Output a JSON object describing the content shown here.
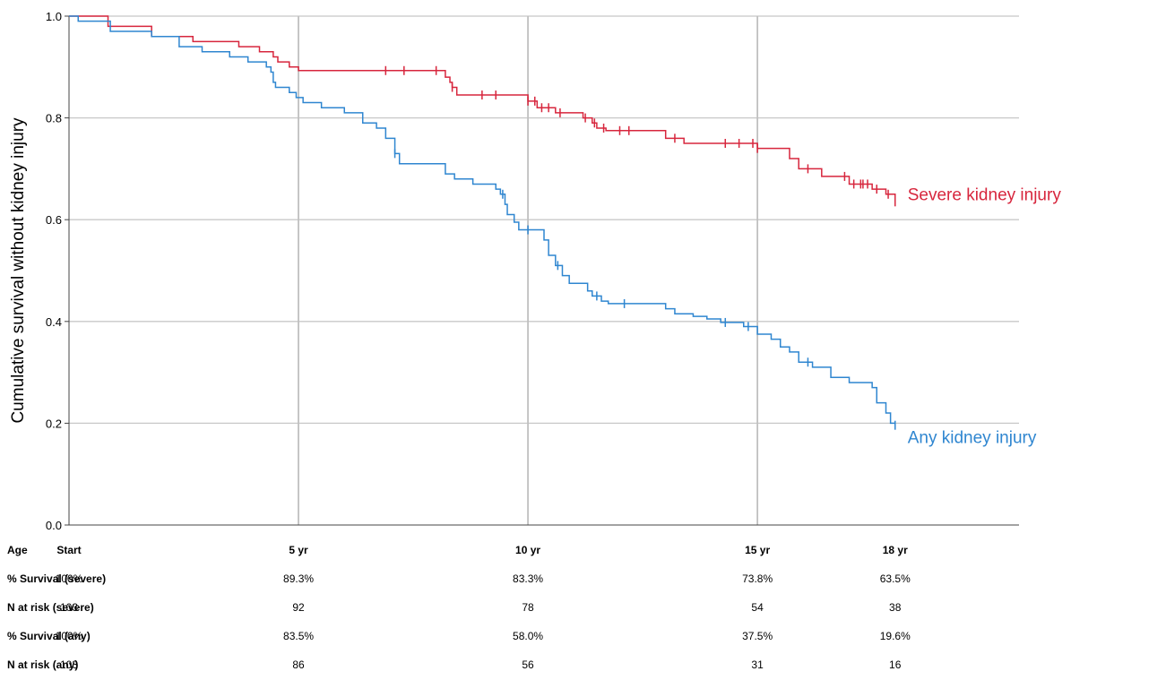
{
  "chart_data": {
    "type": "line",
    "step": true,
    "ylabel": "Cumulative survival without kidney injury",
    "xlabel": "",
    "xlim": [
      0,
      18
    ],
    "ylim": [
      0,
      1.0
    ],
    "yticks": [
      "0.0",
      "0.2",
      "0.4",
      "0.6",
      "0.8",
      "1.0"
    ],
    "xgrid": [
      5,
      10,
      15
    ],
    "grid": true,
    "series": [
      {
        "name": "Severe kidney injury",
        "color": "#d7263d",
        "steps": [
          [
            0,
            1.0
          ],
          [
            0.85,
            0.98
          ],
          [
            1.8,
            0.96
          ],
          [
            2.7,
            0.95
          ],
          [
            3.7,
            0.94
          ],
          [
            4.15,
            0.93
          ],
          [
            4.45,
            0.92
          ],
          [
            4.55,
            0.91
          ],
          [
            4.8,
            0.9
          ],
          [
            5.0,
            0.893
          ],
          [
            8.2,
            0.88
          ],
          [
            8.3,
            0.87
          ],
          [
            8.35,
            0.86
          ],
          [
            8.45,
            0.845
          ],
          [
            10.0,
            0.833
          ],
          [
            10.2,
            0.82
          ],
          [
            10.6,
            0.81
          ],
          [
            11.2,
            0.8
          ],
          [
            11.4,
            0.79
          ],
          [
            11.5,
            0.78
          ],
          [
            11.7,
            0.775
          ],
          [
            13.0,
            0.76
          ],
          [
            13.4,
            0.75
          ],
          [
            15.0,
            0.74
          ],
          [
            15.7,
            0.72
          ],
          [
            15.9,
            0.7
          ],
          [
            16.4,
            0.685
          ],
          [
            17.0,
            0.67
          ],
          [
            17.5,
            0.66
          ],
          [
            17.8,
            0.65
          ],
          [
            18.0,
            0.635
          ]
        ],
        "censor_x": [
          6.9,
          7.3,
          8.0,
          8.35,
          9.0,
          9.3,
          10.0,
          10.15,
          10.3,
          10.45,
          10.7,
          11.25,
          11.45,
          11.65,
          12.0,
          12.2,
          13.2,
          14.3,
          14.6,
          14.9,
          15.0,
          16.1,
          16.9,
          17.1,
          17.25,
          17.3,
          17.4,
          17.6,
          17.85,
          18.0
        ]
      },
      {
        "name": "Any kidney injury",
        "color": "#2f86d0",
        "steps": [
          [
            0,
            1.0
          ],
          [
            0.2,
            0.99
          ],
          [
            0.9,
            0.97
          ],
          [
            1.8,
            0.96
          ],
          [
            2.4,
            0.94
          ],
          [
            2.9,
            0.93
          ],
          [
            3.5,
            0.92
          ],
          [
            3.9,
            0.91
          ],
          [
            4.3,
            0.9
          ],
          [
            4.4,
            0.89
          ],
          [
            4.45,
            0.87
          ],
          [
            4.5,
            0.86
          ],
          [
            4.8,
            0.85
          ],
          [
            4.95,
            0.84
          ],
          [
            5.1,
            0.83
          ],
          [
            5.5,
            0.82
          ],
          [
            6.0,
            0.81
          ],
          [
            6.4,
            0.79
          ],
          [
            6.7,
            0.78
          ],
          [
            6.9,
            0.76
          ],
          [
            7.1,
            0.73
          ],
          [
            7.2,
            0.71
          ],
          [
            8.2,
            0.69
          ],
          [
            8.4,
            0.68
          ],
          [
            8.8,
            0.67
          ],
          [
            9.3,
            0.66
          ],
          [
            9.4,
            0.65
          ],
          [
            9.5,
            0.63
          ],
          [
            9.55,
            0.61
          ],
          [
            9.7,
            0.595
          ],
          [
            9.8,
            0.58
          ],
          [
            10.35,
            0.56
          ],
          [
            10.45,
            0.53
          ],
          [
            10.6,
            0.51
          ],
          [
            10.75,
            0.49
          ],
          [
            10.9,
            0.475
          ],
          [
            11.3,
            0.46
          ],
          [
            11.4,
            0.45
          ],
          [
            11.6,
            0.44
          ],
          [
            11.75,
            0.435
          ],
          [
            13.0,
            0.425
          ],
          [
            13.2,
            0.415
          ],
          [
            13.6,
            0.41
          ],
          [
            13.9,
            0.405
          ],
          [
            14.2,
            0.398
          ],
          [
            14.7,
            0.39
          ],
          [
            15.0,
            0.375
          ],
          [
            15.3,
            0.365
          ],
          [
            15.5,
            0.35
          ],
          [
            15.7,
            0.34
          ],
          [
            15.9,
            0.32
          ],
          [
            16.2,
            0.31
          ],
          [
            16.6,
            0.29
          ],
          [
            17.0,
            0.28
          ],
          [
            17.5,
            0.27
          ],
          [
            17.6,
            0.24
          ],
          [
            17.8,
            0.22
          ],
          [
            17.9,
            0.2
          ],
          [
            18.0,
            0.196
          ]
        ],
        "censor_x": [
          7.1,
          9.45,
          10.0,
          10.65,
          11.5,
          12.1,
          14.3,
          14.8,
          16.1,
          18.0
        ]
      }
    ]
  },
  "risk_table": {
    "header_label": "Age",
    "columns": [
      "Start",
      "5 yr",
      "10 yr",
      "15 yr",
      "18 yr"
    ],
    "column_x": [
      0,
      5,
      10,
      15,
      18
    ],
    "rows": [
      {
        "label": "% Survival (severe)",
        "values": [
          "100%",
          "89.3%",
          "83.3%",
          "73.8%",
          "63.5%"
        ]
      },
      {
        "label": "N at risk (severe)",
        "values": [
          "103",
          "92",
          "78",
          "54",
          "38"
        ]
      },
      {
        "label": "% Survival (any)",
        "values": [
          "100%",
          "83.5%",
          "58.0%",
          "37.5%",
          "19.6%"
        ]
      },
      {
        "label": "N at risk (any)",
        "values": [
          "103",
          "86",
          "56",
          "31",
          "16"
        ]
      }
    ]
  }
}
